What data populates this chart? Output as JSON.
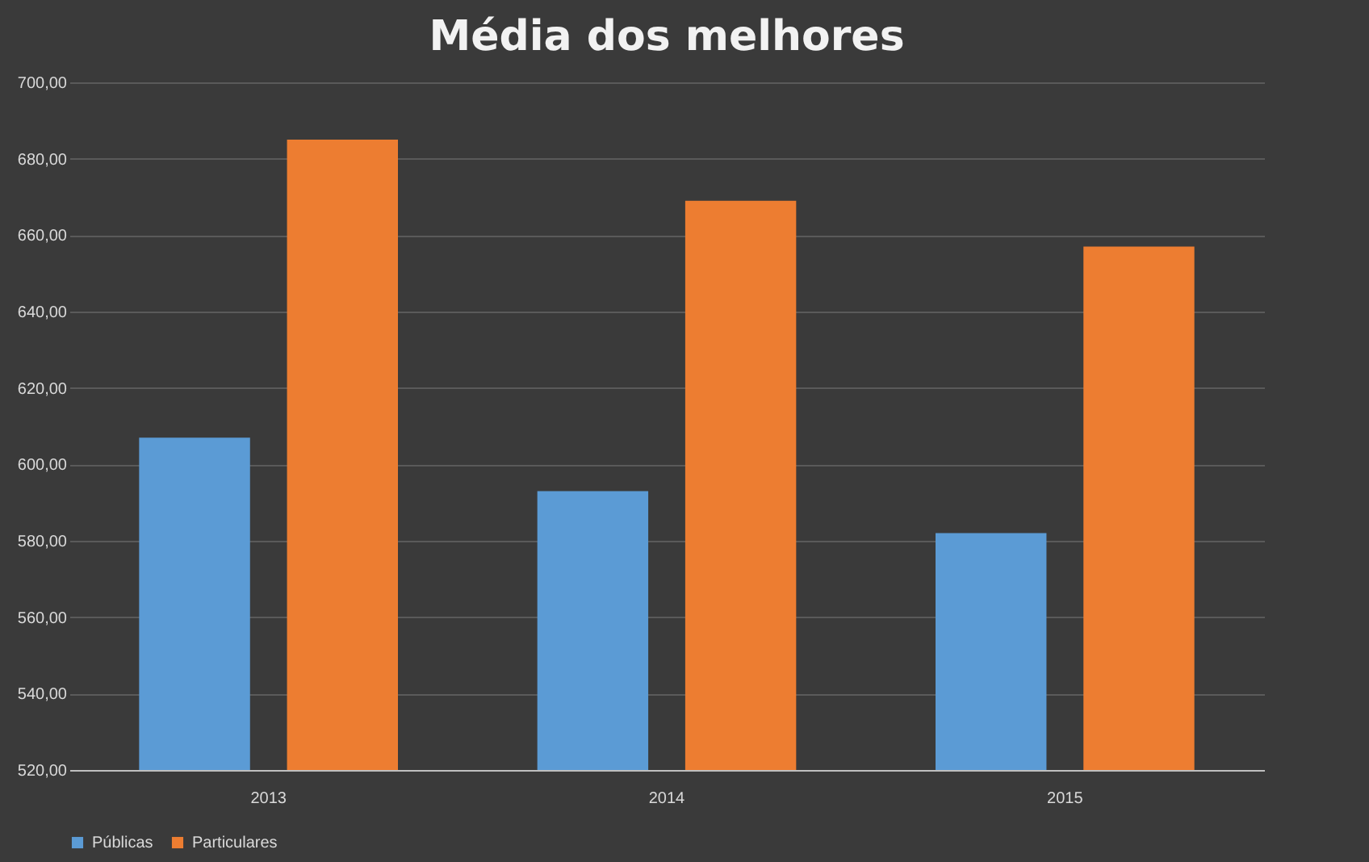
{
  "chart_data": {
    "type": "bar",
    "title": "Média dos melhores",
    "categories": [
      "2013",
      "2014",
      "2015"
    ],
    "series": [
      {
        "name": "Públicas",
        "color": "#5b9bd5",
        "values": [
          607,
          593,
          582
        ]
      },
      {
        "name": "Particulares",
        "color": "#ed7d31",
        "values": [
          685,
          669,
          657
        ]
      }
    ],
    "ylim": [
      520,
      700
    ],
    "yticks": [
      {
        "value": 520,
        "label": "520,00"
      },
      {
        "value": 540,
        "label": "540,00"
      },
      {
        "value": 560,
        "label": "560,00"
      },
      {
        "value": 580,
        "label": "580,00"
      },
      {
        "value": 600,
        "label": "600,00"
      },
      {
        "value": 620,
        "label": "620,00"
      },
      {
        "value": 640,
        "label": "640,00"
      },
      {
        "value": 660,
        "label": "660,00"
      },
      {
        "value": 680,
        "label": "680,00"
      },
      {
        "value": 700,
        "label": "700,00"
      }
    ],
    "grid": "y",
    "legend": "bottom"
  }
}
